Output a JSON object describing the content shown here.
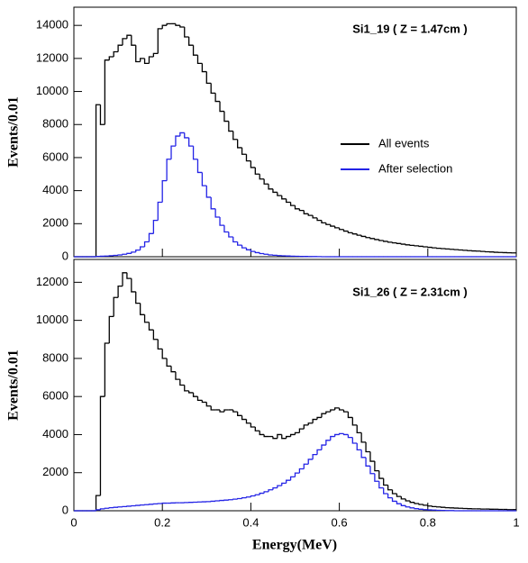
{
  "chart_data": [
    {
      "type": "histogram",
      "annotation": "Si1_19 ( Z = 1.47cm )",
      "ylabel": "Events/0.01",
      "legend": "right",
      "bins": [
        0,
        0.01,
        0.02,
        0.03,
        0.04,
        0.05,
        0.06,
        0.07,
        0.08,
        0.09,
        0.1,
        0.11,
        0.12,
        0.13,
        0.14,
        0.15,
        0.16,
        0.17,
        0.18,
        0.19,
        0.2,
        0.21,
        0.22,
        0.23,
        0.24,
        0.25,
        0.26,
        0.27,
        0.28,
        0.29,
        0.3,
        0.31,
        0.32,
        0.33,
        0.34,
        0.35,
        0.36,
        0.37,
        0.38,
        0.39,
        0.4,
        0.41,
        0.42,
        0.43,
        0.44,
        0.45,
        0.46,
        0.47,
        0.48,
        0.49,
        0.5,
        0.51,
        0.52,
        0.53,
        0.54,
        0.55,
        0.56,
        0.57,
        0.58,
        0.59,
        0.6,
        0.61,
        0.62,
        0.63,
        0.64,
        0.65,
        0.66,
        0.67,
        0.68,
        0.69,
        0.7,
        0.71,
        0.72,
        0.73,
        0.74,
        0.75,
        0.76,
        0.77,
        0.78,
        0.79,
        0.8,
        0.81,
        0.82,
        0.83,
        0.84,
        0.85,
        0.86,
        0.87,
        0.88,
        0.89,
        0.9,
        0.91,
        0.92,
        0.93,
        0.94,
        0.95,
        0.96,
        0.97,
        0.98,
        0.99,
        1
      ],
      "series": [
        {
          "name": "All events",
          "color": "#000000",
          "values": [
            0,
            0,
            0,
            0,
            0,
            9200,
            8000,
            11900,
            12100,
            12400,
            12800,
            13200,
            13400,
            12800,
            11800,
            12000,
            11700,
            12100,
            12300,
            13800,
            14000,
            14100,
            14100,
            14000,
            13900,
            13300,
            12800,
            12200,
            11700,
            11200,
            10500,
            9900,
            9400,
            8800,
            8200,
            7600,
            7100,
            6600,
            6200,
            5800,
            5400,
            5000,
            4700,
            4400,
            4100,
            3900,
            3700,
            3500,
            3300,
            3100,
            2900,
            2800,
            2600,
            2500,
            2350,
            2200,
            2050,
            1950,
            1850,
            1750,
            1650,
            1550,
            1450,
            1380,
            1300,
            1230,
            1160,
            1100,
            1040,
            980,
            930,
            880,
            840,
            800,
            760,
            720,
            690,
            660,
            630,
            600,
            570,
            540,
            510,
            490,
            470,
            450,
            430,
            410,
            390,
            370,
            350,
            340,
            320,
            300,
            290,
            270,
            260,
            250,
            240,
            230
          ]
        },
        {
          "name": "After selection",
          "color": "#2323e6",
          "values": [
            0,
            0,
            0,
            0,
            0,
            20,
            30,
            40,
            60,
            80,
            110,
            150,
            200,
            280,
            400,
            600,
            900,
            1400,
            2200,
            3300,
            4600,
            5900,
            6700,
            7300,
            7500,
            7200,
            6700,
            5900,
            5100,
            4300,
            3600,
            2900,
            2400,
            1900,
            1500,
            1200,
            900,
            700,
            540,
            420,
            320,
            250,
            190,
            150,
            110,
            90,
            70,
            55,
            45,
            35,
            28,
            22,
            18,
            14,
            10,
            8,
            0,
            0,
            0,
            0,
            0,
            0,
            0,
            0,
            0,
            0,
            0,
            0,
            0,
            0,
            0,
            0,
            0,
            0,
            0,
            0,
            0,
            0,
            0,
            0,
            0,
            0,
            0,
            0,
            0,
            0,
            0,
            0,
            0,
            0,
            0,
            0,
            0,
            0,
            0,
            0,
            0,
            0,
            0,
            0
          ]
        }
      ],
      "xlim": [
        0,
        1
      ],
      "ylim": [
        0,
        15100
      ],
      "yticks": [
        0,
        2000,
        4000,
        6000,
        8000,
        10000,
        12000,
        14000
      ]
    },
    {
      "type": "histogram",
      "annotation": "Si1_26 ( Z = 2.31cm )",
      "ylabel": "Events/0.01",
      "xlabel": "Energy(MeV)",
      "bins": [
        0,
        0.01,
        0.02,
        0.03,
        0.04,
        0.05,
        0.06,
        0.07,
        0.08,
        0.09,
        0.1,
        0.11,
        0.12,
        0.13,
        0.14,
        0.15,
        0.16,
        0.17,
        0.18,
        0.19,
        0.2,
        0.21,
        0.22,
        0.23,
        0.24,
        0.25,
        0.26,
        0.27,
        0.28,
        0.29,
        0.3,
        0.31,
        0.32,
        0.33,
        0.34,
        0.35,
        0.36,
        0.37,
        0.38,
        0.39,
        0.4,
        0.41,
        0.42,
        0.43,
        0.44,
        0.45,
        0.46,
        0.47,
        0.48,
        0.49,
        0.5,
        0.51,
        0.52,
        0.53,
        0.54,
        0.55,
        0.56,
        0.57,
        0.58,
        0.59,
        0.6,
        0.61,
        0.62,
        0.63,
        0.64,
        0.65,
        0.66,
        0.67,
        0.68,
        0.69,
        0.7,
        0.71,
        0.72,
        0.73,
        0.74,
        0.75,
        0.76,
        0.77,
        0.78,
        0.79,
        0.8,
        0.81,
        0.82,
        0.83,
        0.84,
        0.85,
        0.86,
        0.87,
        0.88,
        0.89,
        0.9,
        0.91,
        0.92,
        0.93,
        0.94,
        0.95,
        0.96,
        0.97,
        0.98,
        0.99,
        1
      ],
      "series": [
        {
          "color": "#000000",
          "values": [
            0,
            0,
            0,
            0,
            0,
            800,
            6000,
            8800,
            10200,
            11200,
            11800,
            12500,
            12200,
            11500,
            10900,
            10300,
            9900,
            9500,
            9000,
            8500,
            8000,
            7600,
            7300,
            6900,
            6600,
            6300,
            6200,
            6000,
            5800,
            5700,
            5500,
            5300,
            5300,
            5200,
            5300,
            5300,
            5200,
            5000,
            4800,
            4600,
            4400,
            4200,
            4000,
            3900,
            3900,
            3800,
            4000,
            3800,
            3900,
            4000,
            4100,
            4300,
            4500,
            4600,
            4800,
            4900,
            5100,
            5200,
            5300,
            5400,
            5300,
            5200,
            4900,
            4500,
            4100,
            3600,
            3100,
            2600,
            2100,
            1700,
            1350,
            1100,
            900,
            750,
            620,
            520,
            440,
            380,
            330,
            290,
            250,
            220,
            200,
            180,
            160,
            150,
            140,
            130,
            120,
            110,
            100,
            100,
            90,
            90,
            80,
            80,
            70,
            70,
            60,
            60
          ]
        },
        {
          "color": "#2323e6",
          "values": [
            0,
            0,
            0,
            0,
            0,
            50,
            100,
            130,
            160,
            180,
            200,
            220,
            240,
            260,
            280,
            300,
            320,
            340,
            360,
            380,
            400,
            400,
            410,
            420,
            420,
            430,
            440,
            450,
            460,
            470,
            480,
            500,
            520,
            540,
            560,
            580,
            610,
            640,
            680,
            720,
            780,
            840,
            920,
            1000,
            1100,
            1200,
            1320,
            1450,
            1600,
            1780,
            1980,
            2200,
            2450,
            2700,
            2950,
            3200,
            3450,
            3700,
            3900,
            4000,
            4050,
            4000,
            3850,
            3550,
            3200,
            2800,
            2350,
            1950,
            1550,
            1200,
            900,
            680,
            500,
            370,
            270,
            200,
            150,
            110,
            80,
            60,
            45,
            35,
            25,
            18,
            12,
            8,
            0,
            0,
            0,
            0,
            0,
            0,
            0,
            0,
            0,
            0,
            0,
            0,
            0,
            0
          ]
        }
      ],
      "xlim": [
        0,
        1
      ],
      "xticks": [
        0,
        {
          "value": 0.2,
          "label": "0.2"
        },
        {
          "value": 0.4,
          "label": "0.4"
        },
        {
          "value": 0.6,
          "label": "0.6"
        },
        {
          "value": 0.8,
          "label": "0.8"
        },
        1
      ],
      "ylim": [
        0,
        13200
      ],
      "yticks": [
        0,
        2000,
        4000,
        6000,
        8000,
        10000,
        12000
      ]
    }
  ]
}
